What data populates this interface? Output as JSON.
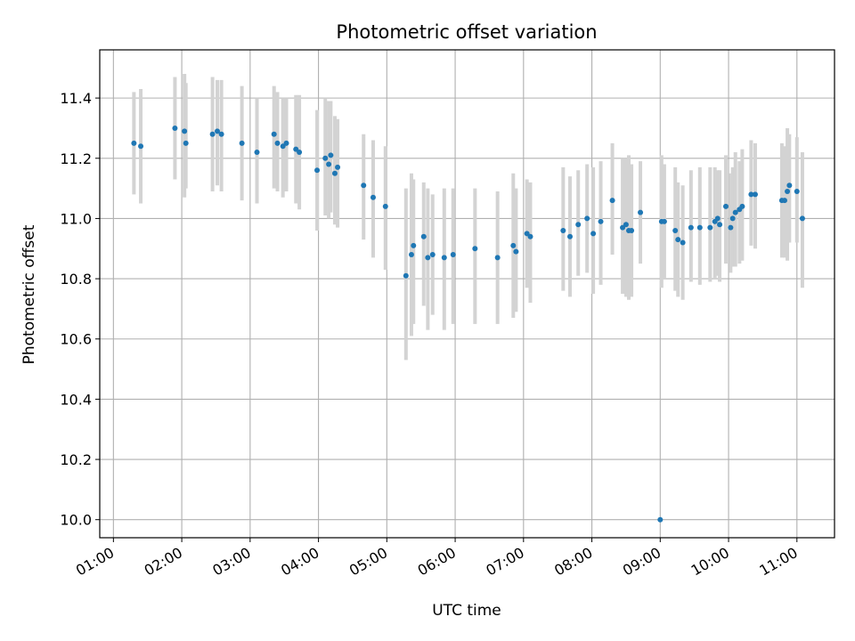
{
  "chart_data": {
    "type": "scatter",
    "title": "Photometric offset variation",
    "xlabel": "UTC time",
    "ylabel": "Photometric offset",
    "x_unit": "UTC hours",
    "xlim": [
      0.8,
      11.55
    ],
    "ylim": [
      9.94,
      11.56
    ],
    "x_ticks": [
      1,
      2,
      3,
      4,
      5,
      6,
      7,
      8,
      9,
      10,
      11
    ],
    "x_tick_labels": [
      "01:00",
      "02:00",
      "03:00",
      "04:00",
      "05:00",
      "06:00",
      "07:00",
      "08:00",
      "09:00",
      "10:00",
      "11:00"
    ],
    "y_ticks": [
      10.0,
      10.2,
      10.4,
      10.6,
      10.8,
      11.0,
      11.2,
      11.4
    ],
    "y_tick_labels": [
      "10.0",
      "10.2",
      "10.4",
      "10.6",
      "10.8",
      "11.0",
      "11.2",
      "11.4"
    ],
    "grid": true,
    "point_color": "#1f77b4",
    "errorbar_color": "#d3d3d3",
    "series": [
      {
        "points": [
          [
            1.3,
            11.25,
            11.08,
            11.42
          ],
          [
            1.4,
            11.24,
            11.05,
            11.43
          ],
          [
            1.9,
            11.3,
            11.13,
            11.47
          ],
          [
            2.04,
            11.29,
            11.07,
            11.48
          ],
          [
            2.06,
            11.25,
            11.1,
            11.45
          ],
          [
            2.45,
            11.28,
            11.09,
            11.47
          ],
          [
            2.52,
            11.29,
            11.11,
            11.46
          ],
          [
            2.58,
            11.28,
            11.09,
            11.46
          ],
          [
            2.88,
            11.25,
            11.06,
            11.44
          ],
          [
            3.1,
            11.22,
            11.05,
            11.4
          ],
          [
            3.35,
            11.28,
            11.1,
            11.44
          ],
          [
            3.4,
            11.25,
            11.09,
            11.42
          ],
          [
            3.48,
            11.24,
            11.07,
            11.4
          ],
          [
            3.53,
            11.25,
            11.09,
            11.4
          ],
          [
            3.67,
            11.23,
            11.05,
            11.41
          ],
          [
            3.72,
            11.22,
            11.03,
            11.41
          ],
          [
            3.98,
            11.16,
            10.96,
            11.36
          ],
          [
            4.1,
            11.2,
            11.01,
            11.4
          ],
          [
            4.15,
            11.18,
            11.0,
            11.39
          ],
          [
            4.18,
            11.21,
            11.02,
            11.39
          ],
          [
            4.24,
            11.15,
            10.98,
            11.34
          ],
          [
            4.28,
            11.17,
            10.97,
            11.33
          ],
          [
            4.66,
            11.11,
            10.93,
            11.28
          ],
          [
            4.8,
            11.07,
            10.87,
            11.26
          ],
          [
            4.98,
            11.04,
            10.83,
            11.24
          ],
          [
            5.28,
            10.81,
            10.53,
            11.1
          ],
          [
            5.36,
            10.88,
            10.61,
            11.15
          ],
          [
            5.39,
            10.91,
            10.65,
            11.13
          ],
          [
            5.54,
            10.94,
            10.71,
            11.12
          ],
          [
            5.6,
            10.87,
            10.63,
            11.1
          ],
          [
            5.67,
            10.88,
            10.68,
            11.08
          ],
          [
            5.84,
            10.87,
            10.63,
            11.1
          ],
          [
            5.97,
            10.88,
            10.65,
            11.1
          ],
          [
            6.29,
            10.9,
            10.65,
            11.1
          ],
          [
            6.62,
            10.87,
            10.65,
            11.09
          ],
          [
            6.85,
            10.91,
            10.67,
            11.15
          ],
          [
            6.89,
            10.89,
            10.69,
            11.1
          ],
          [
            7.05,
            10.95,
            10.77,
            11.13
          ],
          [
            7.1,
            10.94,
            10.72,
            11.12
          ],
          [
            7.58,
            10.96,
            10.76,
            11.17
          ],
          [
            7.68,
            10.94,
            10.74,
            11.14
          ],
          [
            7.8,
            10.98,
            10.81,
            11.16
          ],
          [
            7.93,
            11.0,
            10.82,
            11.18
          ],
          [
            8.02,
            10.95,
            10.75,
            11.17
          ],
          [
            8.13,
            10.99,
            10.78,
            11.19
          ],
          [
            8.3,
            11.06,
            10.88,
            11.25
          ],
          [
            8.45,
            10.97,
            10.75,
            11.2
          ],
          [
            8.5,
            10.98,
            10.74,
            11.2
          ],
          [
            8.54,
            10.96,
            10.73,
            11.21
          ],
          [
            8.58,
            10.96,
            10.74,
            11.18
          ],
          [
            8.71,
            11.02,
            10.85,
            11.19
          ],
          [
            9.0,
            10.0,
            10.0,
            10.0
          ],
          [
            9.02,
            10.99,
            10.77,
            11.21
          ],
          [
            9.06,
            10.99,
            10.8,
            11.18
          ],
          [
            9.22,
            10.96,
            10.76,
            11.17
          ],
          [
            9.26,
            10.93,
            10.74,
            11.12
          ],
          [
            9.33,
            10.92,
            10.73,
            11.11
          ],
          [
            9.45,
            10.97,
            10.79,
            11.16
          ],
          [
            9.58,
            10.97,
            10.78,
            11.17
          ],
          [
            9.73,
            10.97,
            10.79,
            11.17
          ],
          [
            9.8,
            10.99,
            10.8,
            11.17
          ],
          [
            9.84,
            11.0,
            10.81,
            11.16
          ],
          [
            9.87,
            10.98,
            10.79,
            11.16
          ],
          [
            9.96,
            11.04,
            10.85,
            11.21
          ],
          [
            10.03,
            10.97,
            10.82,
            11.15
          ],
          [
            10.06,
            11.0,
            10.84,
            11.17
          ],
          [
            10.1,
            11.02,
            10.84,
            11.22
          ],
          [
            10.16,
            11.03,
            10.85,
            11.19
          ],
          [
            10.2,
            11.04,
            10.86,
            11.23
          ],
          [
            10.33,
            11.08,
            10.91,
            11.26
          ],
          [
            10.39,
            11.08,
            10.9,
            11.25
          ],
          [
            10.78,
            11.06,
            10.87,
            11.25
          ],
          [
            10.82,
            11.06,
            10.87,
            11.24
          ],
          [
            10.86,
            11.09,
            10.86,
            11.3
          ],
          [
            10.89,
            11.11,
            10.92,
            11.28
          ],
          [
            11.0,
            11.09,
            10.92,
            11.27
          ],
          [
            11.08,
            11.0,
            10.77,
            11.22
          ]
        ]
      }
    ]
  }
}
